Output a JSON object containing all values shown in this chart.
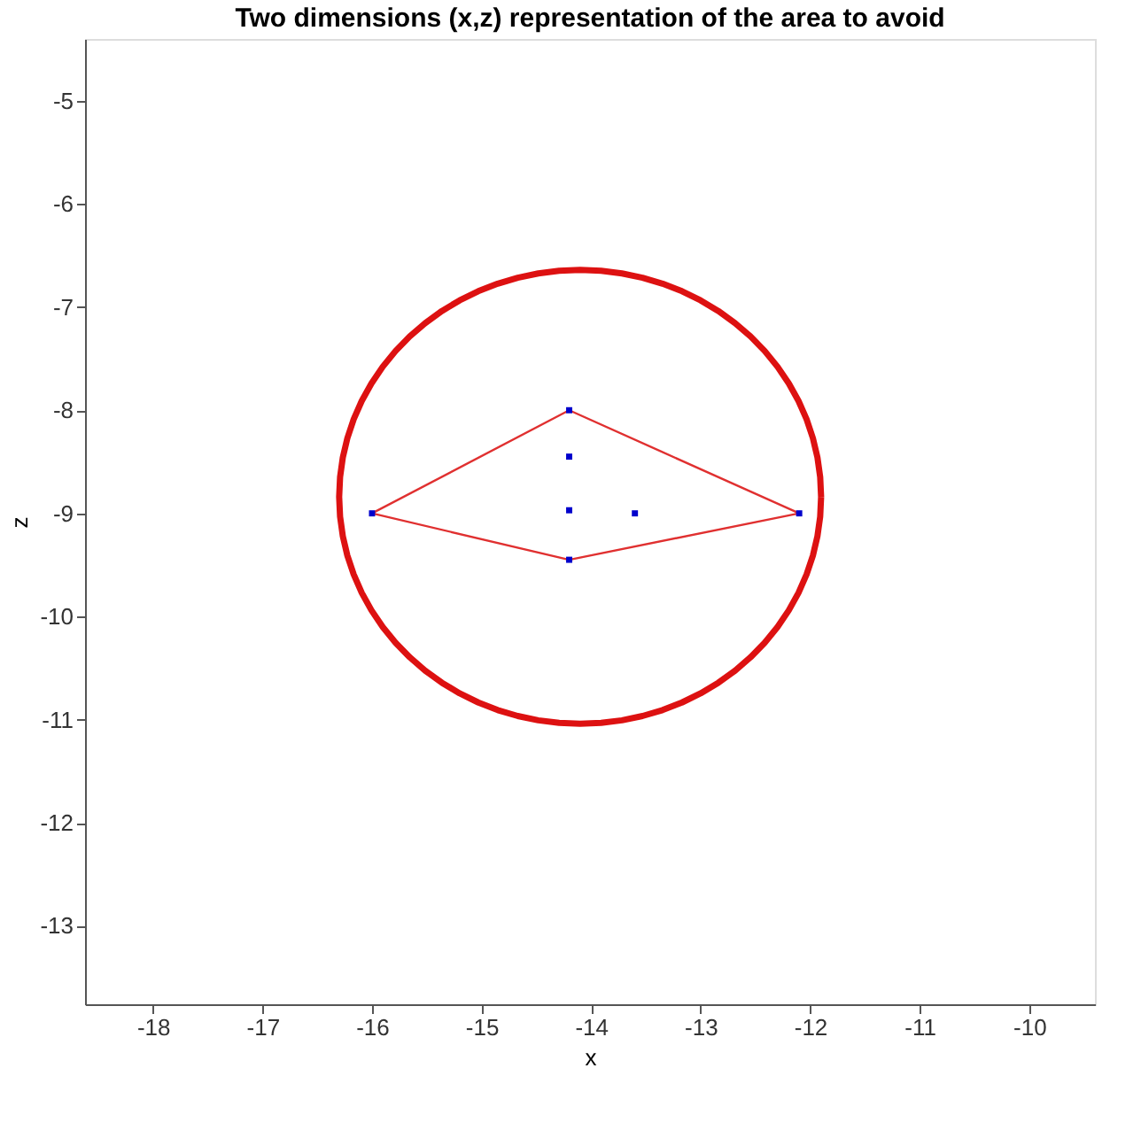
{
  "chart_data": {
    "type": "line",
    "title": "Two dimensions (x,z) representation of the area to avoid",
    "xlabel": "x",
    "ylabel": "z",
    "xlim": [
      -18.62,
      -9.4
    ],
    "ylim": [
      -13.76,
      -4.4
    ],
    "xticks": [
      -18,
      -17,
      -16,
      -15,
      -14,
      -13,
      -12,
      -11,
      -10
    ],
    "yticks": [
      -13,
      -12,
      -11,
      -10,
      -9,
      -8,
      -7,
      -6,
      -5
    ],
    "grid": false,
    "legend": false,
    "series": [
      {
        "color": "#e03030",
        "x": [
          -16.0,
          -14.2,
          -12.1
        ],
        "values": [
          -9.0,
          -8.0,
          -9.0
        ]
      },
      {
        "color": "#e03030",
        "x": [
          -16.0,
          -14.2,
          -12.1
        ],
        "values": [
          -9.0,
          -9.45,
          -9.0
        ]
      },
      {
        "type": "scatter",
        "color": "#0000cc",
        "marker": "square",
        "x": [
          -16.0,
          -14.2,
          -12.1,
          -14.2,
          -14.2,
          -14.2,
          -13.6
        ],
        "values": [
          -9.0,
          -8.0,
          -9.0,
          -9.45,
          -8.45,
          -8.97,
          -9.0
        ]
      }
    ]
  }
}
